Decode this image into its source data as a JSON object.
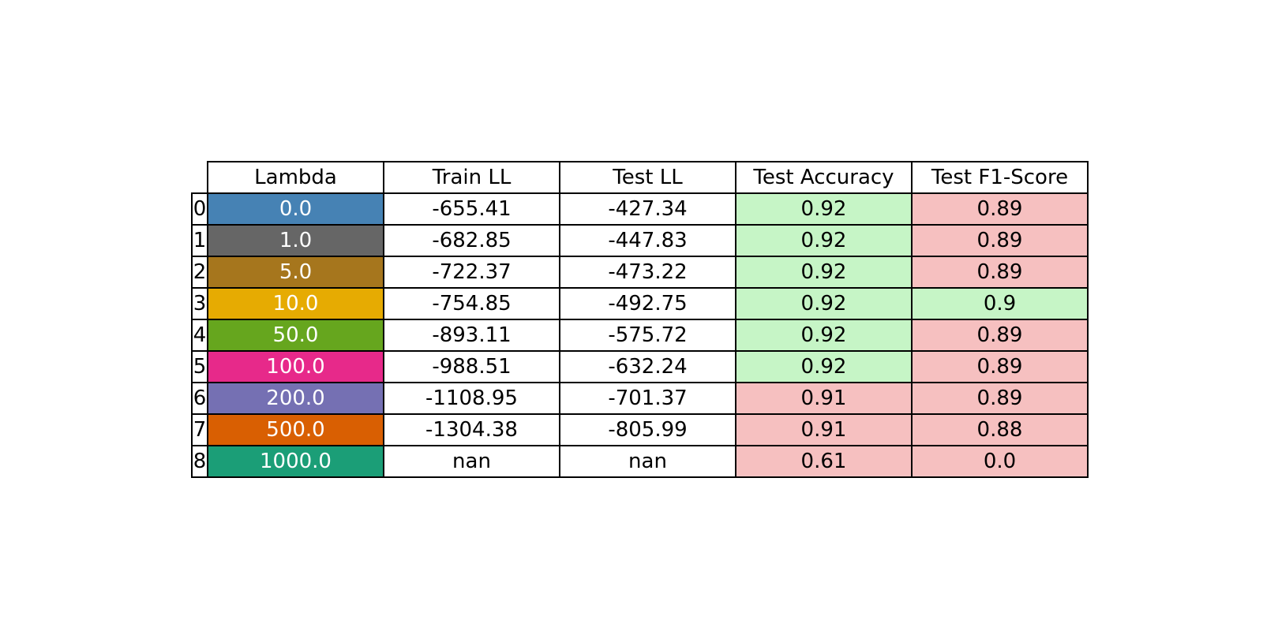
{
  "chart_data": {
    "type": "table",
    "columns": [
      "Lambda",
      "Train LL",
      "Test LL",
      "Test Accuracy",
      "Test F1-Score"
    ],
    "row_index": [
      "0",
      "1",
      "2",
      "3",
      "4",
      "5",
      "6",
      "7",
      "8"
    ],
    "rows": [
      [
        "0.0",
        "-655.41",
        "-427.34",
        "0.92",
        "0.89"
      ],
      [
        "1.0",
        "-682.85",
        "-447.83",
        "0.92",
        "0.89"
      ],
      [
        "5.0",
        "-722.37",
        "-473.22",
        "0.92",
        "0.89"
      ],
      [
        "10.0",
        "-754.85",
        "-492.75",
        "0.92",
        "0.9"
      ],
      [
        "50.0",
        "-893.11",
        "-575.72",
        "0.92",
        "0.89"
      ],
      [
        "100.0",
        "-988.51",
        "-632.24",
        "0.92",
        "0.89"
      ],
      [
        "200.0",
        "-1108.95",
        "-701.37",
        "0.91",
        "0.89"
      ],
      [
        "500.0",
        "-1304.38",
        "-805.99",
        "0.91",
        "0.88"
      ],
      [
        "1000.0",
        "nan",
        "nan",
        "0.61",
        "0.0"
      ]
    ],
    "lambda_colors": [
      "#4682b4",
      "#666666",
      "#a6761d",
      "#e6ab02",
      "#66a61e",
      "#e7298a",
      "#7570b3",
      "#d95f02",
      "#1b9e77"
    ],
    "cell_fill": {
      "Test Accuracy": [
        "good",
        "good",
        "good",
        "good",
        "good",
        "good",
        "bad",
        "bad",
        "bad"
      ],
      "Test F1-Score": [
        "bad",
        "bad",
        "bad",
        "good",
        "bad",
        "bad",
        "bad",
        "bad",
        "bad"
      ]
    },
    "fill_colors": {
      "good": "#c6f5c6",
      "bad": "#f6c0c0",
      "plain": "#ffffff"
    },
    "grid": true
  }
}
